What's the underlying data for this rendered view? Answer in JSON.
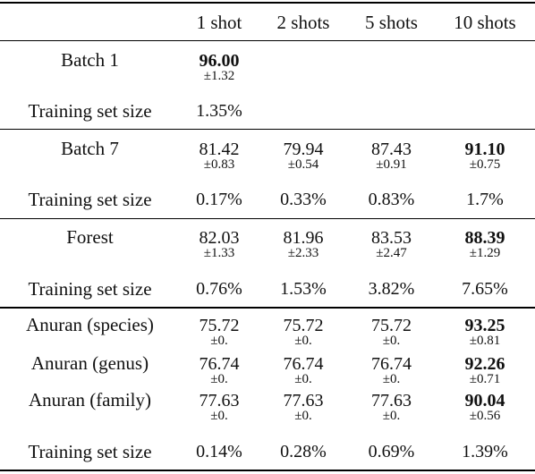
{
  "table": {
    "columns": [
      "",
      "1 shot",
      "2 shots",
      "5 shots",
      "10 shots"
    ],
    "groups": [
      {
        "rows": [
          {
            "label": "Batch 1",
            "cells": [
              {
                "mean": "96.00",
                "sd": "±1.32",
                "bold": true
              },
              null,
              null,
              null
            ]
          }
        ],
        "training": {
          "label": "Training set size",
          "values": [
            "1.35%",
            "",
            "",
            ""
          ]
        }
      },
      {
        "rows": [
          {
            "label": "Batch 7",
            "cells": [
              {
                "mean": "81.42",
                "sd": "±0.83",
                "bold": false
              },
              {
                "mean": "79.94",
                "sd": "±0.54",
                "bold": false
              },
              {
                "mean": "87.43",
                "sd": "±0.91",
                "bold": false
              },
              {
                "mean": "91.10",
                "sd": "±0.75",
                "bold": true
              }
            ]
          }
        ],
        "training": {
          "label": "Training set size",
          "values": [
            "0.17%",
            "0.33%",
            "0.83%",
            "1.7%"
          ]
        }
      },
      {
        "rows": [
          {
            "label": "Forest",
            "cells": [
              {
                "mean": "82.03",
                "sd": "±1.33",
                "bold": false
              },
              {
                "mean": "81.96",
                "sd": "±2.33",
                "bold": false
              },
              {
                "mean": "83.53",
                "sd": "±2.47",
                "bold": false
              },
              {
                "mean": "88.39",
                "sd": "±1.29",
                "bold": true
              }
            ]
          }
        ],
        "training": {
          "label": "Training set size",
          "values": [
            "0.76%",
            "1.53%",
            "3.82%",
            "7.65%"
          ]
        }
      },
      {
        "rows": [
          {
            "label": "Anuran (species)",
            "cells": [
              {
                "mean": "75.72",
                "sd": "±0.",
                "bold": false
              },
              {
                "mean": "75.72",
                "sd": "±0.",
                "bold": false
              },
              {
                "mean": "75.72",
                "sd": "±0.",
                "bold": false
              },
              {
                "mean": "93.25",
                "sd": "±0.81",
                "bold": true
              }
            ]
          },
          {
            "label": "Anuran (genus)",
            "cells": [
              {
                "mean": "76.74",
                "sd": "±0.",
                "bold": false
              },
              {
                "mean": "76.74",
                "sd": "±0.",
                "bold": false
              },
              {
                "mean": "76.74",
                "sd": "±0.",
                "bold": false
              },
              {
                "mean": "92.26",
                "sd": "±0.71",
                "bold": true
              }
            ]
          },
          {
            "label": "Anuran (family)",
            "cells": [
              {
                "mean": "77.63",
                "sd": "±0.",
                "bold": false
              },
              {
                "mean": "77.63",
                "sd": "±0.",
                "bold": false
              },
              {
                "mean": "77.63",
                "sd": "±0.",
                "bold": false
              },
              {
                "mean": "90.04",
                "sd": "±0.56",
                "bold": true
              }
            ]
          }
        ],
        "training": {
          "label": "Training set size",
          "values": [
            "0.14%",
            "0.28%",
            "0.69%",
            "1.39%"
          ]
        }
      }
    ]
  }
}
